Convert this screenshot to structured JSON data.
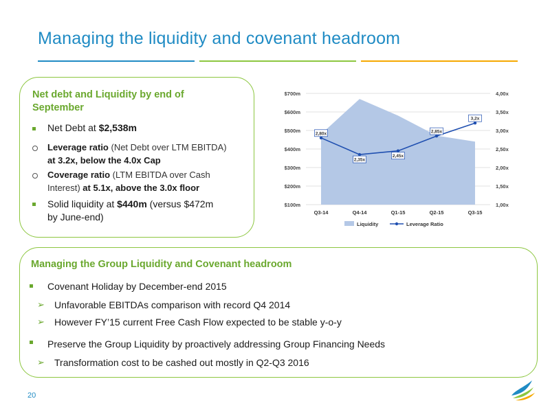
{
  "title": "Managing the liquidity and covenant headroom",
  "box1": {
    "title": "Net debt and Liquidity by end of September",
    "net_debt_label": "Net Debt at ",
    "net_debt_value": "$2,538m",
    "leverage": {
      "bold_label": "Leverage ratio",
      "paren": " (Net Debt over LTM EBITDA)",
      "at": "at ",
      "value": "3.2x,",
      "rest": " below the 4.0x Cap"
    },
    "coverage": {
      "bold_label": "Coverage ratio",
      "paren": " (LTM EBITDA over Cash",
      "paren2": "Interest)",
      "at": " at ",
      "value": "5.1x",
      "rest": ", above the 3.0x floor"
    },
    "liquidity": {
      "label": "Solid liquidity at ",
      "value": "$440m",
      "rest": " (versus $472m",
      "line2": "by June-end)"
    }
  },
  "box2": {
    "title": "Managing the Group Liquidity and Covenant headroom",
    "bullet1": "Covenant Holiday by December-end 2015",
    "sub1": "Unfavorable EBITDAs comparison with record Q4 2014",
    "sub2": "However FY’15 current Free Cash Flow expected to be stable y-o-y",
    "bullet2": "Preserve the Group Liquidity by proactively addressing Group Financing Needs",
    "sub3": "Transformation cost to be cashed out mostly in Q2-Q3 2016"
  },
  "page_number": "20",
  "colors": {
    "blue": "#1f8bc4",
    "green": "#8cc63f",
    "orange": "#f6a800",
    "area": "#b4c8e6",
    "line": "#1f4fb0"
  },
  "chart_data": {
    "type": "area",
    "categories": [
      "Q3-14",
      "Q4-14",
      "Q1-15",
      "Q2-15",
      "Q3-15"
    ],
    "left_axis": {
      "ticks": [
        "$700m",
        "$600m",
        "$500m",
        "$400m",
        "$300m",
        "$200m",
        "$100m"
      ],
      "ylim": [
        100,
        700
      ]
    },
    "right_axis": {
      "ticks": [
        "4,00x",
        "3,50x",
        "3,00x",
        "2,50x",
        "2,00x",
        "1,50x",
        "1,00x"
      ],
      "ylim": [
        1.0,
        4.0
      ]
    },
    "series": [
      {
        "name": "Liquidity",
        "type": "area",
        "axis": "left",
        "values": [
          480,
          670,
          580,
          472,
          440
        ]
      },
      {
        "name": "Leverage Ratio",
        "type": "line",
        "axis": "right",
        "values": [
          2.8,
          2.35,
          2.45,
          2.85,
          3.2
        ],
        "labels": [
          "2,80x",
          "2,35x",
          "2,45x",
          "2,85x",
          "3,2x"
        ]
      }
    ],
    "grid": true,
    "legend": "bottom"
  }
}
